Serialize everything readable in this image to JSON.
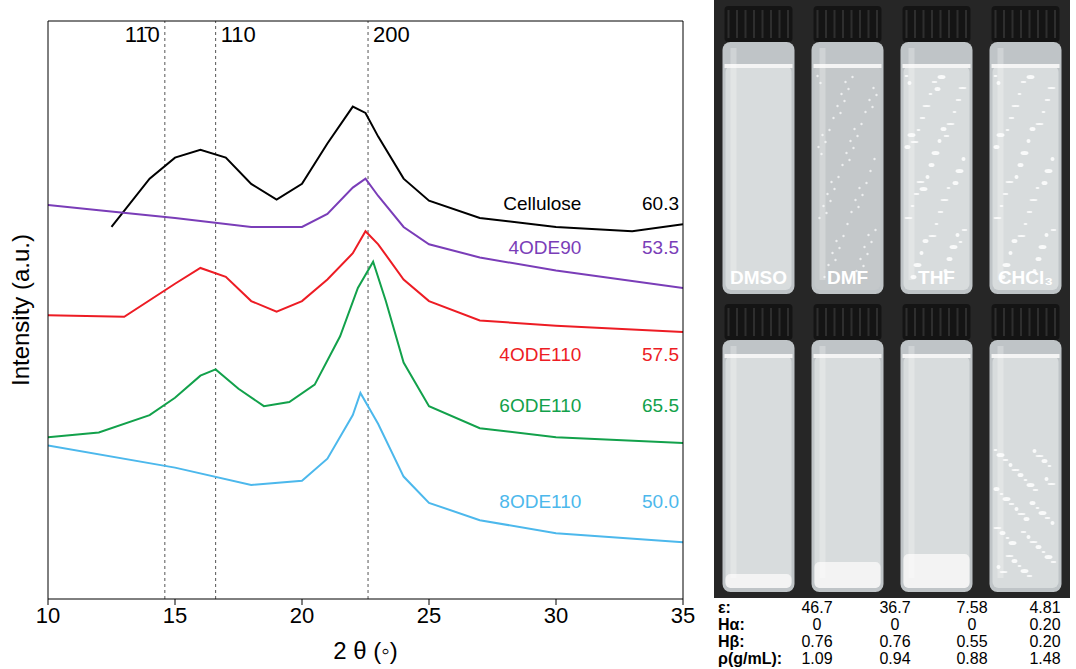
{
  "chart_data": {
    "type": "line",
    "x_label": "2 θ (◦)",
    "y_label": "Intensity (a.u.)",
    "xlim": [
      10,
      35
    ],
    "xticks": [
      10,
      15,
      20,
      25,
      30,
      35
    ],
    "ylim": [
      0,
      110
    ],
    "tick_labels": "x",
    "grid": false,
    "peaks": [
      {
        "label": "11̄0",
        "x": 14.6
      },
      {
        "label": "110",
        "x": 16.6
      },
      {
        "label": "200",
        "x": 22.6
      }
    ],
    "series": [
      {
        "name": "Cellulose",
        "color": "#000000",
        "crystallinity": {
          "value": 60.3,
          "label": "60.3"
        },
        "x": [
          12.5,
          14,
          15,
          16,
          17,
          18,
          19,
          20,
          21,
          22,
          22.5,
          23,
          24,
          25,
          27,
          30,
          33,
          35
        ],
        "values": [
          70.8,
          80,
          84,
          85.5,
          84,
          79,
          76,
          79,
          86.7,
          93.7,
          92.5,
          88,
          80,
          75.8,
          72.5,
          70.8,
          70,
          71.3
        ]
      },
      {
        "name": "4ODE90",
        "color": "#7a3db8",
        "crystallinity": {
          "value": 53.5,
          "label": "53.5"
        },
        "x": [
          10,
          12,
          15,
          18,
          20,
          21,
          22,
          22.5,
          23,
          24,
          25,
          27,
          30,
          35
        ],
        "values": [
          75,
          74,
          72.5,
          70.8,
          70.8,
          73.3,
          78.3,
          80,
          76.7,
          70.8,
          67.5,
          65,
          62.5,
          59.2
        ]
      },
      {
        "name": "4ODE110",
        "color": "#ed1c24",
        "crystallinity": {
          "value": 57.5,
          "label": "57.5"
        },
        "x": [
          10,
          13,
          15,
          16,
          17,
          18,
          19,
          20,
          21,
          22,
          22.5,
          23,
          24,
          25,
          27,
          30,
          35
        ],
        "values": [
          54,
          53.7,
          60,
          63,
          61.3,
          56.7,
          54.7,
          56.7,
          60.8,
          65.8,
          70,
          67.5,
          60.8,
          56.7,
          53,
          52,
          50.8
        ]
      },
      {
        "name": "6ODE110",
        "color": "#12a14b",
        "crystallinity": {
          "value": 65.5,
          "label": "65.5"
        },
        "x": [
          10,
          12,
          14,
          15,
          16,
          16.6,
          17.5,
          18.5,
          19.5,
          20.5,
          21.5,
          22.2,
          22.8,
          23.3,
          24,
          25,
          27,
          30,
          35
        ],
        "values": [
          30.8,
          31.7,
          35,
          38.3,
          42.5,
          43.7,
          40,
          36.7,
          37.5,
          40.8,
          50,
          59.2,
          64.2,
          56.7,
          45,
          36.7,
          32.5,
          30.8,
          29.7
        ]
      },
      {
        "name": "8ODE110",
        "color": "#4cb8ec",
        "crystallinity": {
          "value": 50,
          "label": "50.0"
        },
        "x": [
          10,
          15,
          18,
          20,
          21,
          22,
          22.3,
          23,
          24,
          25,
          27,
          30,
          35
        ],
        "values": [
          29.2,
          25,
          21.7,
          22.5,
          26.7,
          35,
          39.2,
          33.3,
          23.3,
          18.3,
          15,
          12.5,
          10.8
        ]
      }
    ]
  },
  "photo": {
    "solvents": [
      "DMSO",
      "DMF",
      "THF",
      "CHCl₃"
    ],
    "properties": [
      {
        "label": "ε:",
        "values": [
          "46.7",
          "36.7",
          "7.58",
          "4.81"
        ]
      },
      {
        "label": "Hα:",
        "values": [
          "0",
          "0",
          "0",
          "0.20"
        ]
      },
      {
        "label": "Hβ:",
        "values": [
          "0.76",
          "0.76",
          "0.55",
          "0.20"
        ]
      },
      {
        "label": "ρ(g/mL):",
        "values": [
          "1.09",
          "0.94",
          "0.88",
          "1.48"
        ]
      }
    ]
  }
}
